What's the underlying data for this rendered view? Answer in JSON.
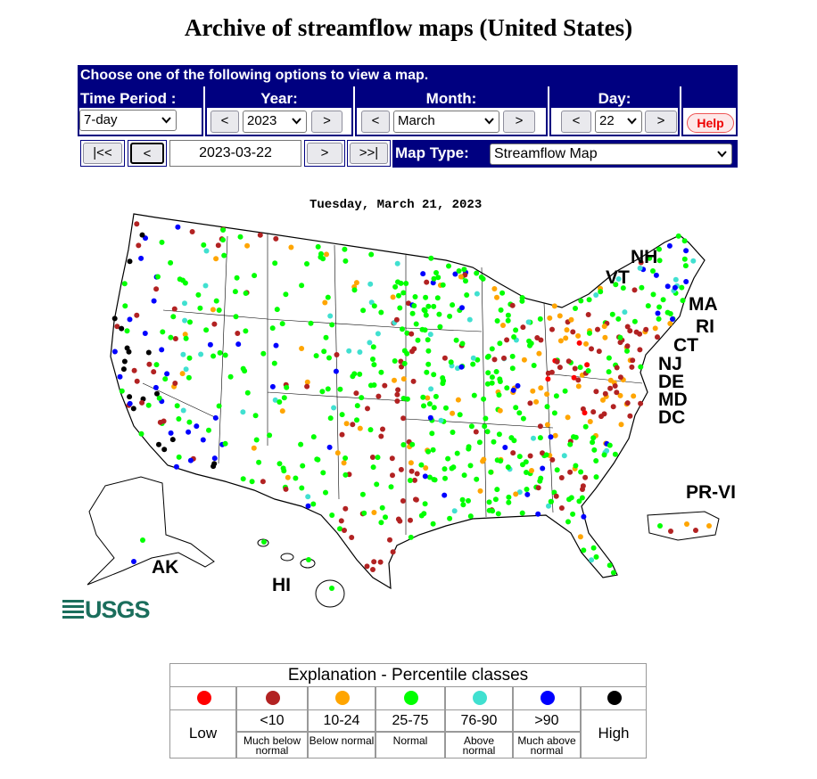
{
  "header": {
    "title": "Archive of streamflow maps (United States)"
  },
  "controls": {
    "banner": "Choose one of the following options to view a map.",
    "time_period": {
      "label": "Time Period :",
      "value": "7-day"
    },
    "year": {
      "label": "Year:",
      "prev": "<",
      "value": "2023",
      "next": ">"
    },
    "month": {
      "label": "Month:",
      "prev": "<",
      "value": "March",
      "next": ">"
    },
    "day": {
      "label": "Day:",
      "prev": "<",
      "value": "22",
      "next": ">"
    },
    "help": "Help",
    "nav": {
      "first": "|<<",
      "prev": "<",
      "date": "2023-03-22",
      "next": ">",
      "last": ">>|"
    },
    "map_type": {
      "label": "Map Type:",
      "value": "Streamflow Map"
    }
  },
  "map": {
    "date": "Tuesday, March 21, 2023",
    "labels": [
      "NH",
      "VT",
      "MA",
      "RI",
      "CT",
      "NJ",
      "DE",
      "MD",
      "DC",
      "PR-VI",
      "AK",
      "HI"
    ],
    "logo": "USGS"
  },
  "legend": {
    "title": "Explanation - Percentile classes",
    "classes": [
      {
        "label": "Low",
        "color": "#ff0000"
      },
      {
        "label": "<10",
        "note": "Much below normal",
        "color": "#b22222"
      },
      {
        "label": "10-24",
        "note": "Below normal",
        "color": "#ffa500"
      },
      {
        "label": "25-75",
        "note": "Normal",
        "color": "#00ff00"
      },
      {
        "label": "76-90",
        "note": "Above normal",
        "color": "#40e0d0"
      },
      {
        "label": ">90",
        "note": "Much above normal",
        "color": "#0000ff"
      },
      {
        "label": "High",
        "color": "#000000"
      }
    ]
  }
}
